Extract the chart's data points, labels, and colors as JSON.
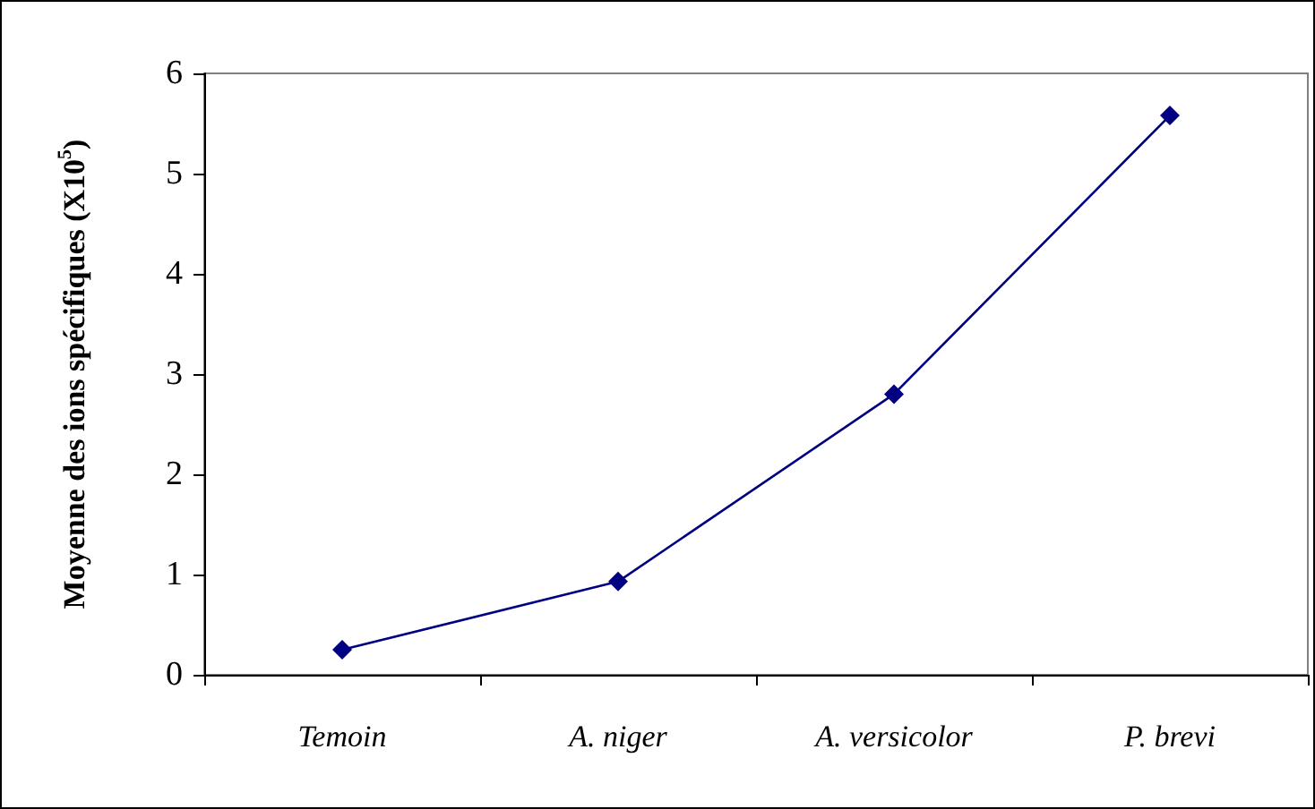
{
  "chart_data": {
    "type": "line",
    "ylabel": "Moyenne des ions spécifiques (X10$^{5}$)",
    "categories": [
      "Temoin",
      "A. niger",
      "A. versicolor",
      "P. brevi"
    ],
    "series": [
      {
        "color": "#000080",
        "values": [
          0.25,
          0.93,
          2.8,
          5.58
        ]
      }
    ],
    "ylim": [
      0,
      6
    ],
    "yticks": [
      0,
      1,
      2,
      3,
      4,
      5,
      6
    ],
    "grid": false,
    "marker": "diamond",
    "line_style": "solid"
  }
}
